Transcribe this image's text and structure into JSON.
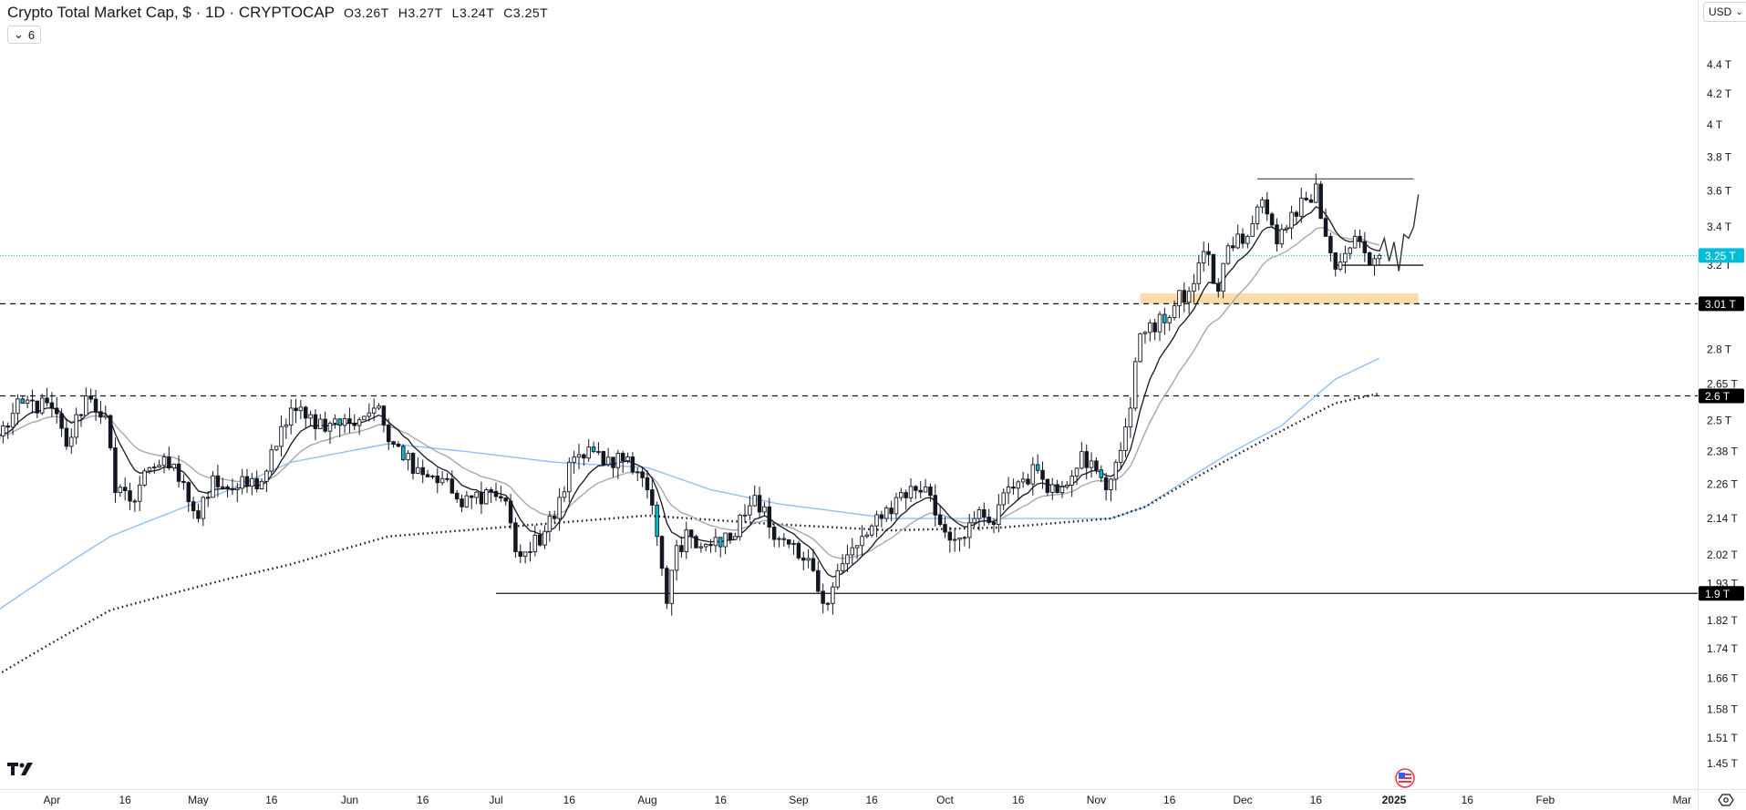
{
  "header": {
    "title": "Crypto Total Market Cap, $ · 1D · CRYPTOCAP",
    "ohlc": [
      {
        "label": "O",
        "value": "3.26T"
      },
      {
        "label": "H",
        "value": "3.27T"
      },
      {
        "label": "L",
        "value": "3.24T"
      },
      {
        "label": "C",
        "value": "3.25T"
      }
    ],
    "indicators_toggle": "6",
    "currency": "USD"
  },
  "icons": {
    "logo": "tradingview-logo-icon",
    "event": "us-flag-event-icon",
    "settings": "chart-settings-icon"
  },
  "colors": {
    "up_fill": "#ffffff",
    "down_fill": "#131722",
    "candle_border": "#131722",
    "ema_fast": "#131722",
    "ema_slow": "#a8a8a8",
    "ma_blue": "#90bff9",
    "ma_dotted": "#131722",
    "last_price": "#00bcd4",
    "zone": "#fbdcaa"
  },
  "chart_data": {
    "type": "candlestick",
    "title": "Crypto Total Market Cap, $ · 1D · CRYPTOCAP",
    "scale": "log",
    "ylim": [
      1.42,
      4.5
    ],
    "xlim": [
      "2024-03-21",
      "2025-03-08"
    ],
    "price_ticks": [
      "4.4",
      "4.2",
      "4",
      "3.8",
      "3.6",
      "3.4",
      "3.2",
      "2.8",
      "2.65",
      "2.5",
      "2.38",
      "2.26",
      "2.14",
      "2.02",
      "1.93",
      "1.82",
      "1.74",
      "1.66",
      "1.58",
      "1.51",
      "1.45"
    ],
    "price_unit": "T",
    "time_ticks": [
      {
        "label": "Apr",
        "date": "2024-04-01"
      },
      {
        "label": "16",
        "date": "2024-04-16"
      },
      {
        "label": "May",
        "date": "2024-05-01"
      },
      {
        "label": "16",
        "date": "2024-05-16"
      },
      {
        "label": "Jun",
        "date": "2024-06-01"
      },
      {
        "label": "16",
        "date": "2024-06-16"
      },
      {
        "label": "Jul",
        "date": "2024-07-01"
      },
      {
        "label": "16",
        "date": "2024-07-16"
      },
      {
        "label": "Aug",
        "date": "2024-08-01"
      },
      {
        "label": "16",
        "date": "2024-08-16"
      },
      {
        "label": "Sep",
        "date": "2024-09-01"
      },
      {
        "label": "16",
        "date": "2024-09-16"
      },
      {
        "label": "Oct",
        "date": "2024-10-01"
      },
      {
        "label": "16",
        "date": "2024-10-16"
      },
      {
        "label": "Nov",
        "date": "2024-11-01"
      },
      {
        "label": "16",
        "date": "2024-11-16"
      },
      {
        "label": "Dec",
        "date": "2024-12-01"
      },
      {
        "label": "16",
        "date": "2024-12-16"
      },
      {
        "label": "2025",
        "date": "2025-01-01",
        "bold": true
      },
      {
        "label": "16",
        "date": "2025-01-16"
      },
      {
        "label": "Feb",
        "date": "2025-02-01"
      },
      {
        "label": "Mar",
        "date": "2025-03-01"
      }
    ],
    "close_keyframes": [
      [
        "2024-03-21",
        2.44
      ],
      [
        "2024-03-26",
        2.57
      ],
      [
        "2024-04-01",
        2.55
      ],
      [
        "2024-04-04",
        2.4
      ],
      [
        "2024-04-08",
        2.6
      ],
      [
        "2024-04-12",
        2.52
      ],
      [
        "2024-04-14",
        2.23
      ],
      [
        "2024-04-17",
        2.2
      ],
      [
        "2024-04-21",
        2.32
      ],
      [
        "2024-04-24",
        2.36
      ],
      [
        "2024-04-27",
        2.27
      ],
      [
        "2024-05-01",
        2.14
      ],
      [
        "2024-05-04",
        2.29
      ],
      [
        "2024-05-08",
        2.24
      ],
      [
        "2024-05-14",
        2.27
      ],
      [
        "2024-05-17",
        2.4
      ],
      [
        "2024-05-20",
        2.55
      ],
      [
        "2024-05-23",
        2.51
      ],
      [
        "2024-05-28",
        2.49
      ],
      [
        "2024-06-01",
        2.49
      ],
      [
        "2024-06-06",
        2.55
      ],
      [
        "2024-06-11",
        2.4
      ],
      [
        "2024-06-15",
        2.32
      ],
      [
        "2024-06-20",
        2.28
      ],
      [
        "2024-06-24",
        2.18
      ],
      [
        "2024-06-29",
        2.24
      ],
      [
        "2024-07-03",
        2.2
      ],
      [
        "2024-07-05",
        2.03
      ],
      [
        "2024-07-08",
        2.03
      ],
      [
        "2024-07-13",
        2.14
      ],
      [
        "2024-07-16",
        2.34
      ],
      [
        "2024-07-21",
        2.38
      ],
      [
        "2024-07-25",
        2.32
      ],
      [
        "2024-07-28",
        2.36
      ],
      [
        "2024-08-01",
        2.24
      ],
      [
        "2024-08-03",
        2.08
      ],
      [
        "2024-08-05",
        1.87
      ],
      [
        "2024-08-07",
        2.05
      ],
      [
        "2024-08-10",
        2.08
      ],
      [
        "2024-08-14",
        2.05
      ],
      [
        "2024-08-18",
        2.07
      ],
      [
        "2024-08-23",
        2.22
      ],
      [
        "2024-08-25",
        2.18
      ],
      [
        "2024-08-27",
        2.07
      ],
      [
        "2024-09-01",
        2.01
      ],
      [
        "2024-09-04",
        1.97
      ],
      [
        "2024-09-06",
        1.87
      ],
      [
        "2024-09-09",
        1.97
      ],
      [
        "2024-09-13",
        2.05
      ],
      [
        "2024-09-18",
        2.14
      ],
      [
        "2024-09-22",
        2.23
      ],
      [
        "2024-09-27",
        2.25
      ],
      [
        "2024-09-30",
        2.12
      ],
      [
        "2024-10-03",
        2.07
      ],
      [
        "2024-10-07",
        2.14
      ],
      [
        "2024-10-11",
        2.12
      ],
      [
        "2024-10-14",
        2.25
      ],
      [
        "2024-10-20",
        2.31
      ],
      [
        "2024-10-24",
        2.23
      ],
      [
        "2024-10-29",
        2.38
      ],
      [
        "2024-11-03",
        2.24
      ],
      [
        "2024-11-05",
        2.34
      ],
      [
        "2024-11-08",
        2.55
      ],
      [
        "2024-11-10",
        2.87
      ],
      [
        "2024-11-12",
        2.92
      ],
      [
        "2024-11-15",
        2.92
      ],
      [
        "2024-11-17",
        3.0
      ],
      [
        "2024-11-20",
        3.07
      ],
      [
        "2024-11-23",
        3.27
      ],
      [
        "2024-11-26",
        3.07
      ],
      [
        "2024-11-28",
        3.3
      ],
      [
        "2024-12-02",
        3.35
      ],
      [
        "2024-12-05",
        3.55
      ],
      [
        "2024-12-08",
        3.31
      ],
      [
        "2024-12-11",
        3.48
      ],
      [
        "2024-12-14",
        3.55
      ],
      [
        "2024-12-16",
        3.64
      ],
      [
        "2024-12-18",
        3.35
      ],
      [
        "2024-12-20",
        3.18
      ],
      [
        "2024-12-22",
        3.26
      ],
      [
        "2024-12-24",
        3.35
      ],
      [
        "2024-12-27",
        3.2
      ],
      [
        "2024-12-29",
        3.25
      ]
    ],
    "ema_fast_period": 9,
    "ema_slow_period": 21,
    "ma_blue": [
      [
        "2024-03-21",
        1.85
      ],
      [
        "2024-04-13",
        2.08
      ],
      [
        "2024-05-06",
        2.23
      ],
      [
        "2024-05-20",
        2.34
      ],
      [
        "2024-06-09",
        2.41
      ],
      [
        "2024-06-25",
        2.38
      ],
      [
        "2024-07-13",
        2.34
      ],
      [
        "2024-08-01",
        2.32
      ],
      [
        "2024-08-14",
        2.24
      ],
      [
        "2024-08-28",
        2.19
      ],
      [
        "2024-09-20",
        2.14
      ],
      [
        "2024-10-13",
        2.14
      ],
      [
        "2024-11-04",
        2.14
      ],
      [
        "2024-11-11",
        2.18
      ],
      [
        "2024-11-27",
        2.36
      ],
      [
        "2024-12-09",
        2.48
      ],
      [
        "2024-12-20",
        2.67
      ],
      [
        "2024-12-29",
        2.76
      ]
    ],
    "ma_dotted": [
      [
        "2024-03-21",
        1.67
      ],
      [
        "2024-04-13",
        1.85
      ],
      [
        "2024-05-06",
        1.94
      ],
      [
        "2024-05-20",
        1.99
      ],
      [
        "2024-06-09",
        2.08
      ],
      [
        "2024-07-02",
        2.11
      ],
      [
        "2024-08-01",
        2.15
      ],
      [
        "2024-08-28",
        2.12
      ],
      [
        "2024-09-20",
        2.1
      ],
      [
        "2024-10-13",
        2.11
      ],
      [
        "2024-11-04",
        2.14
      ],
      [
        "2024-11-11",
        2.18
      ],
      [
        "2024-11-27",
        2.34
      ],
      [
        "2024-12-09",
        2.46
      ],
      [
        "2024-12-20",
        2.57
      ],
      [
        "2024-12-29",
        2.61
      ]
    ],
    "levels": [
      {
        "name": "resistance-3-01",
        "price": 3.01,
        "label": "3.01 T",
        "style": "dashed"
      },
      {
        "name": "support-2-6",
        "price": 2.6,
        "label": "2.6 T",
        "style": "dashed"
      },
      {
        "name": "support-1-9",
        "price": 1.9,
        "label": "1.9 T",
        "style": "solid",
        "from": "2024-07-01"
      }
    ],
    "last_price": {
      "price": 3.25,
      "label": "3.25 T"
    },
    "zone": {
      "from": "2024-11-10",
      "to": "2025-01-06",
      "low": 3.01,
      "high": 3.06
    },
    "range_top": {
      "price": 3.67,
      "from": "2024-12-04",
      "to": "2025-01-05"
    },
    "range_bottom": {
      "price": 3.2,
      "from": "2024-12-20",
      "to": "2025-01-07"
    },
    "projection": [
      [
        "2024-12-29",
        3.27
      ],
      [
        "2024-12-30",
        3.34
      ],
      [
        "2024-12-31",
        3.22
      ],
      [
        "2025-01-01",
        3.32
      ],
      [
        "2025-01-02",
        3.17
      ],
      [
        "2025-01-03",
        3.36
      ],
      [
        "2025-01-04",
        3.34
      ],
      [
        "2025-01-05",
        3.4
      ],
      [
        "2025-01-06",
        3.58
      ]
    ]
  }
}
